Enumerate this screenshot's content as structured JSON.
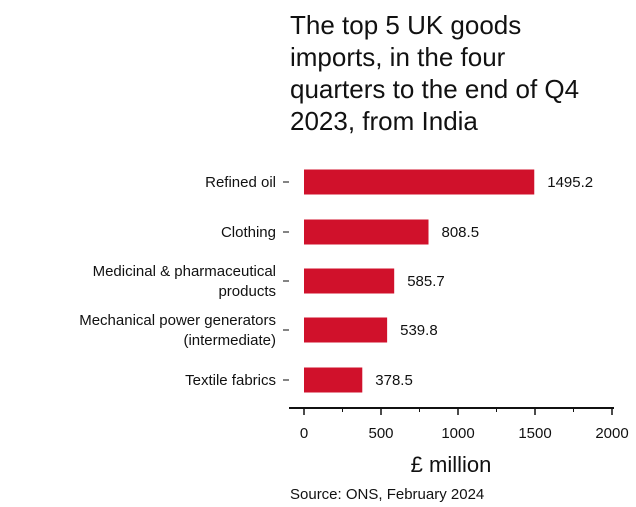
{
  "chart_data": {
    "type": "bar",
    "orientation": "horizontal",
    "title_lines": [
      "The top 5 UK goods",
      "imports, in the four",
      "quarters to the end of Q4",
      "2023, from India"
    ],
    "categories": [
      [
        "Refined oil"
      ],
      [
        "Clothing"
      ],
      [
        "Medicinal & pharmaceutical",
        "products"
      ],
      [
        "Mechanical power generators",
        "(intermediate)"
      ],
      [
        "Textile fabrics"
      ]
    ],
    "values": [
      1495.2,
      808.5,
      585.7,
      539.8,
      378.5
    ],
    "value_labels": [
      "1495.2",
      "808.5",
      "585.7",
      "539.8",
      "378.5"
    ],
    "xlabel": "£ million",
    "xlim": [
      0,
      2000
    ],
    "xticks": [
      0,
      500,
      1000,
      1500,
      2000
    ],
    "grid": false,
    "legend": "none",
    "bar_color": "#d0112b",
    "source": "Source: ONS, February 2024"
  }
}
